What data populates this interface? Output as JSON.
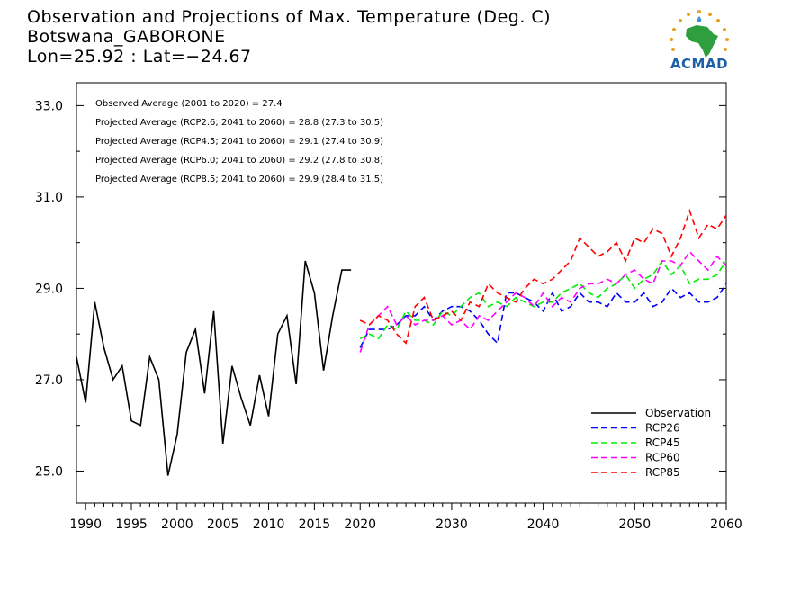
{
  "title": {
    "line1": "Observation and Projections of Max. Temperature (Deg. C)",
    "line2": "Botswana_GABORONE",
    "line3": "Lon=25.92 : Lat=−24.67"
  },
  "logo": {
    "text": "ACMAD"
  },
  "stats": [
    "Observed Average (2001 to 2020) = 27.4",
    "Projected Average (RCP2.6; 2041 to 2060) = 28.8 (27.3 to 30.5)",
    "Projected Average (RCP4.5; 2041 to 2060) = 29.1 (27.4 to 30.9)",
    "Projected Average (RCP6.0; 2041 to 2060) = 29.2 (27.8 to 30.8)",
    "Projected Average (RCP8.5; 2041 to 2060) = 29.9 (28.4 to 31.5)"
  ],
  "chart_data": {
    "type": "line",
    "xlim": [
      1989,
      2060
    ],
    "ylim": [
      24.3,
      33.5
    ],
    "x_ticks": [
      {
        "value": 1990,
        "label": "1990"
      },
      {
        "value": 1995,
        "label": "1995"
      },
      {
        "value": 2000,
        "label": "2000"
      },
      {
        "value": 2005,
        "label": "2005"
      },
      {
        "value": 2010,
        "label": "2010"
      },
      {
        "value": 2015,
        "label": "2015"
      },
      {
        "value": 2020,
        "label": "2020"
      },
      {
        "value": 2030,
        "label": "2030"
      },
      {
        "value": 2040,
        "label": "2040"
      },
      {
        "value": 2050,
        "label": "2050"
      },
      {
        "value": 2060,
        "label": "2060"
      }
    ],
    "y_ticks": [
      {
        "value": 25.0,
        "label": "25.0"
      },
      {
        "value": 27.0,
        "label": "27.0"
      },
      {
        "value": 29.0,
        "label": "29.0"
      },
      {
        "value": 31.0,
        "label": "31.0"
      },
      {
        "value": 33.0,
        "label": "33.0"
      }
    ],
    "legend_position": "bottom-right",
    "series": [
      {
        "name": "Observation",
        "color": "#000000",
        "dash": "solid",
        "x": [
          1989,
          1990,
          1991,
          1992,
          1993,
          1994,
          1995,
          1996,
          1997,
          1998,
          1999,
          2000,
          2001,
          2002,
          2003,
          2004,
          2005,
          2006,
          2007,
          2008,
          2009,
          2010,
          2011,
          2012,
          2013,
          2014,
          2015,
          2016,
          2017,
          2018,
          2019
        ],
        "y": [
          27.5,
          26.5,
          28.7,
          27.7,
          27.0,
          27.3,
          26.1,
          26.0,
          27.5,
          27.0,
          24.9,
          25.8,
          27.6,
          28.1,
          26.7,
          28.5,
          25.6,
          27.3,
          26.6,
          26.0,
          27.1,
          26.2,
          28.0,
          28.4,
          26.9,
          29.6,
          28.9,
          27.2,
          28.4,
          29.4,
          29.4
        ]
      },
      {
        "name": "RCP26",
        "color": "#0000ff",
        "dash": "dashed",
        "x": [
          2020,
          2021,
          2022,
          2023,
          2024,
          2025,
          2026,
          2027,
          2028,
          2029,
          2030,
          2031,
          2032,
          2033,
          2034,
          2035,
          2036,
          2037,
          2038,
          2039,
          2040,
          2041,
          2042,
          2043,
          2044,
          2045,
          2046,
          2047,
          2048,
          2049,
          2050,
          2051,
          2052,
          2053,
          2054,
          2055,
          2056,
          2057,
          2058,
          2059,
          2060
        ],
        "y": [
          27.7,
          28.1,
          28.1,
          28.1,
          28.2,
          28.4,
          28.4,
          28.6,
          28.3,
          28.5,
          28.6,
          28.6,
          28.5,
          28.3,
          28.0,
          27.8,
          28.9,
          28.9,
          28.8,
          28.7,
          28.5,
          28.9,
          28.5,
          28.6,
          28.9,
          28.7,
          28.7,
          28.6,
          28.9,
          28.7,
          28.7,
          28.9,
          28.6,
          28.7,
          29.0,
          28.8,
          28.9,
          28.7,
          28.7,
          28.8,
          29.1
        ]
      },
      {
        "name": "RCP45",
        "color": "#00ee00",
        "dash": "dashed",
        "x": [
          2020,
          2021,
          2022,
          2023,
          2024,
          2025,
          2026,
          2027,
          2028,
          2029,
          2030,
          2031,
          2032,
          2033,
          2034,
          2035,
          2036,
          2037,
          2038,
          2039,
          2040,
          2041,
          2042,
          2043,
          2044,
          2045,
          2046,
          2047,
          2048,
          2049,
          2050,
          2051,
          2052,
          2053,
          2054,
          2055,
          2056,
          2057,
          2058,
          2059,
          2060
        ],
        "y": [
          27.9,
          28.0,
          27.9,
          28.2,
          28.1,
          28.5,
          28.3,
          28.3,
          28.2,
          28.5,
          28.4,
          28.6,
          28.8,
          28.9,
          28.6,
          28.7,
          28.6,
          28.8,
          28.7,
          28.6,
          28.7,
          28.7,
          28.9,
          29.0,
          29.1,
          28.9,
          28.8,
          29.0,
          29.1,
          29.3,
          29.0,
          29.2,
          29.3,
          29.6,
          29.3,
          29.5,
          29.1,
          29.2,
          29.2,
          29.3,
          29.6
        ]
      },
      {
        "name": "RCP60",
        "color": "#ff00ff",
        "dash": "dashed",
        "x": [
          2020,
          2021,
          2022,
          2023,
          2024,
          2025,
          2026,
          2027,
          2028,
          2029,
          2030,
          2031,
          2032,
          2033,
          2034,
          2035,
          2036,
          2037,
          2038,
          2039,
          2040,
          2041,
          2042,
          2043,
          2044,
          2045,
          2046,
          2047,
          2048,
          2049,
          2050,
          2051,
          2052,
          2053,
          2054,
          2055,
          2056,
          2057,
          2058,
          2059,
          2060
        ],
        "y": [
          27.6,
          28.2,
          28.4,
          28.6,
          28.2,
          28.4,
          28.2,
          28.3,
          28.3,
          28.4,
          28.2,
          28.3,
          28.1,
          28.4,
          28.3,
          28.5,
          28.7,
          28.9,
          28.8,
          28.6,
          28.9,
          28.6,
          28.8,
          28.7,
          29.0,
          29.1,
          29.1,
          29.2,
          29.1,
          29.3,
          29.4,
          29.2,
          29.1,
          29.6,
          29.6,
          29.5,
          29.8,
          29.6,
          29.4,
          29.7,
          29.5
        ]
      },
      {
        "name": "RCP85",
        "color": "#ff0000",
        "dash": "dashed",
        "x": [
          2020,
          2021,
          2022,
          2023,
          2024,
          2025,
          2026,
          2027,
          2028,
          2029,
          2030,
          2031,
          2032,
          2033,
          2034,
          2035,
          2036,
          2037,
          2038,
          2039,
          2040,
          2041,
          2042,
          2043,
          2044,
          2045,
          2046,
          2047,
          2048,
          2049,
          2050,
          2051,
          2052,
          2053,
          2054,
          2055,
          2056,
          2057,
          2058,
          2059,
          2060
        ],
        "y": [
          28.3,
          28.2,
          28.4,
          28.3,
          28.0,
          27.8,
          28.6,
          28.8,
          28.3,
          28.4,
          28.5,
          28.3,
          28.7,
          28.6,
          29.1,
          28.9,
          28.8,
          28.7,
          29.0,
          29.2,
          29.1,
          29.2,
          29.4,
          29.6,
          30.1,
          29.9,
          29.7,
          29.8,
          30.0,
          29.6,
          30.1,
          30.0,
          30.3,
          30.2,
          29.7,
          30.1,
          30.7,
          30.1,
          30.4,
          30.3,
          30.6
        ]
      }
    ]
  }
}
